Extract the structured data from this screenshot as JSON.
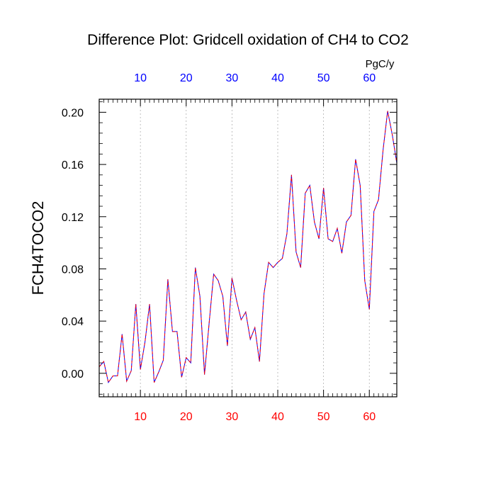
{
  "chart_data": {
    "type": "line",
    "title": "Difference Plot: Gridcell oxidation of CH4 to CO2",
    "ylabel": "FCH4TOCO2",
    "xlabel": "",
    "units_label": "PgC/y",
    "xlim": [
      1,
      66
    ],
    "ylim": [
      -0.018,
      0.21
    ],
    "x_ticks": [
      10,
      20,
      30,
      40,
      50,
      60
    ],
    "x_tick_labels": [
      "10",
      "20",
      "30",
      "40",
      "50",
      "60"
    ],
    "top_tick_labels": [
      "10",
      "20",
      "30",
      "40",
      "50",
      "60"
    ],
    "y_ticks": [
      0.0,
      0.04,
      0.08,
      0.12,
      0.16,
      0.2
    ],
    "y_tick_labels": [
      "0.00",
      "0.04",
      "0.08",
      "0.12",
      "0.16",
      "0.20"
    ],
    "grid": "vertical dashed at top-axis ticks",
    "colors": {
      "bottom_ticks": "#ff0000",
      "top_ticks": "#0000ff",
      "series_a": "#0000ff",
      "series_b": "#ff0000",
      "axis": "#000000",
      "grid": "#b0b0b0"
    },
    "series": [
      {
        "name": "difference",
        "x": [
          1,
          2,
          3,
          4,
          5,
          6,
          7,
          8,
          9,
          10,
          11,
          12,
          13,
          14,
          15,
          16,
          17,
          18,
          19,
          20,
          21,
          22,
          23,
          24,
          25,
          26,
          27,
          28,
          29,
          30,
          31,
          32,
          33,
          34,
          35,
          36,
          37,
          38,
          39,
          40,
          41,
          42,
          43,
          44,
          45,
          46,
          47,
          48,
          49,
          50,
          51,
          52,
          53,
          54,
          55,
          56,
          57,
          58,
          59,
          60,
          61,
          62,
          63,
          64,
          65,
          66
        ],
        "values": [
          0.005,
          0.009,
          -0.007,
          -0.002,
          -0.002,
          0.03,
          -0.006,
          0.002,
          0.053,
          0.003,
          0.024,
          0.053,
          -0.007,
          0.001,
          0.01,
          0.072,
          0.032,
          0.032,
          -0.003,
          0.012,
          0.008,
          0.081,
          0.059,
          -0.001,
          0.038,
          0.076,
          0.071,
          0.059,
          0.021,
          0.073,
          0.056,
          0.041,
          0.047,
          0.026,
          0.035,
          0.009,
          0.061,
          0.085,
          0.081,
          0.085,
          0.088,
          0.107,
          0.152,
          0.093,
          0.081,
          0.138,
          0.144,
          0.116,
          0.103,
          0.142,
          0.103,
          0.101,
          0.111,
          0.092,
          0.116,
          0.121,
          0.164,
          0.144,
          0.071,
          0.049,
          0.124,
          0.133,
          0.171,
          0.201,
          0.183,
          0.161
        ]
      }
    ]
  }
}
